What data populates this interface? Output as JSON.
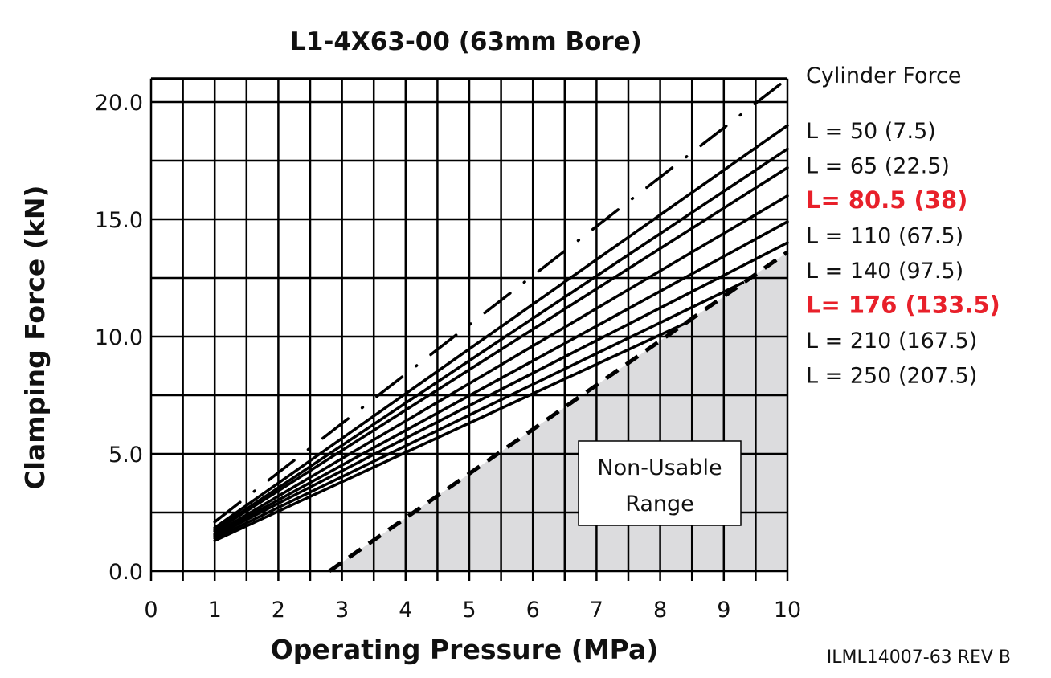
{
  "chart_data": {
    "type": "line",
    "title": "L1-4X63-00 (63mm Bore)",
    "xlabel": "Operating Pressure (MPa)",
    "ylabel": "Clamping Force (kN)",
    "xlim": [
      0,
      10
    ],
    "ylim": [
      0,
      21
    ],
    "xticks": [
      "0",
      "1",
      "2",
      "3",
      "4",
      "5",
      "6",
      "7",
      "8",
      "9",
      "10"
    ],
    "yticks": [
      {
        "v": 0,
        "label": "0.0"
      },
      {
        "v": 5,
        "label": "5.0"
      },
      {
        "v": 10,
        "label": "10.0"
      },
      {
        "v": 15,
        "label": "15.0"
      },
      {
        "v": 20,
        "label": "20.0"
      }
    ],
    "grid": true,
    "legend_title": "Cylinder Force",
    "series": [
      {
        "name": "Cylinder Force",
        "style": "dashdot",
        "x": [
          1,
          10
        ],
        "y": [
          2.1,
          21.0
        ]
      },
      {
        "name": "L = 50 (7.5)",
        "highlight": false,
        "x": [
          1,
          10
        ],
        "y": [
          1.85,
          19.0
        ]
      },
      {
        "name": "L = 65 (22.5)",
        "highlight": false,
        "x": [
          1,
          10
        ],
        "y": [
          1.75,
          18.0
        ]
      },
      {
        "name": "L= 80.5 (38)",
        "highlight": true,
        "x": [
          1,
          10
        ],
        "y": [
          1.7,
          17.2
        ]
      },
      {
        "name": "L = 110 (67.5)",
        "highlight": false,
        "x": [
          1,
          10
        ],
        "y": [
          1.6,
          16.0
        ]
      },
      {
        "name": "L = 140 (97.5)",
        "highlight": false,
        "x": [
          1,
          10
        ],
        "y": [
          1.55,
          14.9
        ]
      },
      {
        "name": "L= 176 (133.5)",
        "highlight": true,
        "x": [
          1,
          10
        ],
        "y": [
          1.5,
          14.0
        ]
      },
      {
        "name": "L = 210 (167.5)",
        "highlight": false,
        "x": [
          1,
          9.3
        ],
        "y": [
          1.4,
          12.3
        ]
      },
      {
        "name": "L = 250 (207.5)",
        "highlight": false,
        "x": [
          1,
          8.5
        ],
        "y": [
          1.3,
          10.7
        ]
      }
    ],
    "non_usable": {
      "label_line1": "Non-Usable",
      "label_line2": "Range",
      "x": [
        2.8,
        10
      ],
      "y": [
        0,
        13.6
      ]
    },
    "annotation": "ILML14007-63 REV B",
    "colors": {
      "highlight": "#e8202a",
      "region": "#dcdcde",
      "line": "#000000"
    }
  }
}
